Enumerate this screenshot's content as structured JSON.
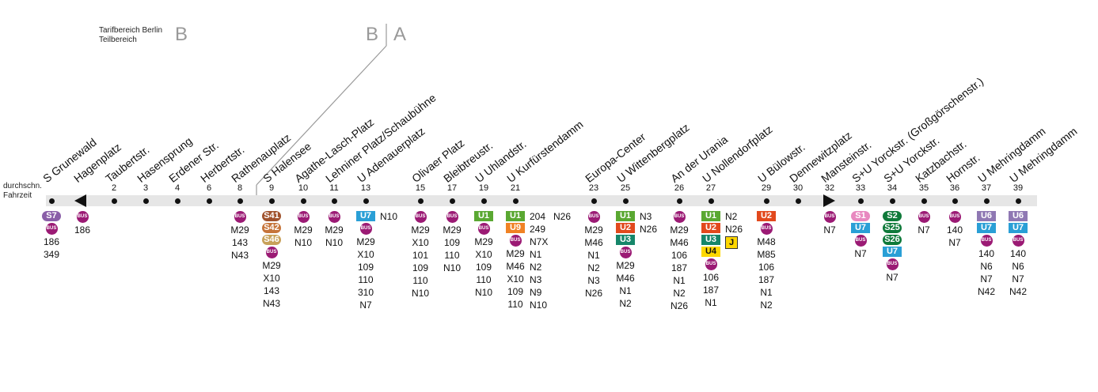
{
  "header": {
    "tariff_line1": "Tarifbereich Berlin",
    "tariff_line2": "Teilbereich",
    "zone_b_left": "B",
    "zone_b_right": "B",
    "zone_a": "A"
  },
  "legend": {
    "line1": "durchschn.",
    "line2": "Fahrzeit"
  },
  "colors": {
    "bus": "#9b1a74",
    "S7": "#8a5fa8",
    "S41": "#a0522d",
    "S42": "#c6743a",
    "S46": "#c8a15a",
    "U7": "#2a9fd6",
    "U1": "#5aa832",
    "U9": "#f08224",
    "U2": "#e2491d",
    "U3": "#16866a",
    "U4": "#ffd800",
    "S1": "#e889c0",
    "S2": "#0f7a3a",
    "S25": "#0f7a3a",
    "S26": "#0f7a3a",
    "U6": "#8f78b3"
  },
  "stops": [
    {
      "name": "S Grunewald",
      "minutes": "",
      "lines": [
        {
          "t": "s",
          "v": "S7"
        },
        {
          "t": "bus"
        },
        {
          "t": "txt",
          "v": "186"
        },
        {
          "t": "txt",
          "v": "349"
        }
      ]
    },
    {
      "name": "Hagenplatz",
      "minutes": "",
      "lines": [
        {
          "t": "bus"
        },
        {
          "t": "txt",
          "v": "186"
        }
      ]
    },
    {
      "name": "Taubertstr.",
      "minutes": "2",
      "lines": []
    },
    {
      "name": "Hasensprung",
      "minutes": "3",
      "lines": []
    },
    {
      "name": "Erdener Str.",
      "minutes": "4",
      "lines": []
    },
    {
      "name": "Herbertstr.",
      "minutes": "6",
      "lines": []
    },
    {
      "name": "Rathenauplatz",
      "minutes": "8",
      "lines": [
        {
          "t": "bus"
        },
        {
          "t": "txt",
          "v": "M29"
        },
        {
          "t": "txt",
          "v": "143"
        },
        {
          "t": "txt",
          "v": "N43"
        }
      ]
    },
    {
      "name": "S Halensee",
      "minutes": "9",
      "lines": [
        {
          "t": "s",
          "v": "S41"
        },
        {
          "t": "s",
          "v": "S42"
        },
        {
          "t": "s",
          "v": "S46"
        },
        {
          "t": "bus"
        },
        {
          "t": "txt",
          "v": "M29"
        },
        {
          "t": "txt",
          "v": "X10"
        },
        {
          "t": "txt",
          "v": "143"
        },
        {
          "t": "txt",
          "v": "N43"
        }
      ]
    },
    {
      "name": "Agathe-Lasch-Platz",
      "minutes": "10",
      "lines": [
        {
          "t": "bus"
        },
        {
          "t": "txt",
          "v": "M29"
        },
        {
          "t": "txt",
          "v": "N10"
        }
      ]
    },
    {
      "name": "Lehniner Platz/Schaubühne",
      "minutes": "11",
      "lines": [
        {
          "t": "bus"
        },
        {
          "t": "txt",
          "v": "M29"
        },
        {
          "t": "txt",
          "v": "N10"
        }
      ]
    },
    {
      "name": "U Adenauerplatz",
      "minutes": "13",
      "lines": [
        {
          "t": "u",
          "v": "U7"
        },
        {
          "t": "bus"
        },
        {
          "t": "txt",
          "v": "M29"
        },
        {
          "t": "txt",
          "v": "X10"
        },
        {
          "t": "txt",
          "v": "109"
        },
        {
          "t": "txt",
          "v": "110"
        },
        {
          "t": "txt",
          "v": "310"
        },
        {
          "t": "txt",
          "v": "N7"
        }
      ],
      "side": [
        "N10"
      ]
    },
    {
      "name": "Olivaer Platz",
      "minutes": "15",
      "lines": [
        {
          "t": "bus"
        },
        {
          "t": "txt",
          "v": "M29"
        },
        {
          "t": "txt",
          "v": "X10"
        },
        {
          "t": "txt",
          "v": "101"
        },
        {
          "t": "txt",
          "v": "109"
        },
        {
          "t": "txt",
          "v": "110"
        },
        {
          "t": "txt",
          "v": "N10"
        }
      ]
    },
    {
      "name": "Bleibtreustr.",
      "minutes": "17",
      "lines": [
        {
          "t": "bus"
        },
        {
          "t": "txt",
          "v": "M29"
        },
        {
          "t": "txt",
          "v": "109"
        },
        {
          "t": "txt",
          "v": "110"
        },
        {
          "t": "txt",
          "v": "N10"
        }
      ]
    },
    {
      "name": "U Uhlandstr.",
      "minutes": "19",
      "lines": [
        {
          "t": "u",
          "v": "U1"
        },
        {
          "t": "bus"
        },
        {
          "t": "txt",
          "v": "M29"
        },
        {
          "t": "txt",
          "v": "X10"
        },
        {
          "t": "txt",
          "v": "109"
        },
        {
          "t": "txt",
          "v": "110"
        },
        {
          "t": "txt",
          "v": "N10"
        }
      ]
    },
    {
      "name": "U Kurfürstendamm",
      "minutes": "21",
      "lines": [
        {
          "t": "u",
          "v": "U1"
        },
        {
          "t": "u",
          "v": "U9"
        },
        {
          "t": "bus"
        },
        {
          "t": "txt",
          "v": "M29"
        },
        {
          "t": "txt",
          "v": "M46"
        },
        {
          "t": "txt",
          "v": "X10"
        },
        {
          "t": "txt",
          "v": "109"
        },
        {
          "t": "txt",
          "v": "110"
        }
      ],
      "side": [
        "204",
        "249",
        "N7X",
        "N1",
        "N2",
        "N3",
        "N9",
        "N10"
      ],
      "side2": [
        "N26"
      ]
    },
    {
      "name": "Europa-Center",
      "minutes": "23",
      "lines": [
        {
          "t": "bus"
        },
        {
          "t": "txt",
          "v": "M29"
        },
        {
          "t": "txt",
          "v": "M46"
        },
        {
          "t": "txt",
          "v": "N1"
        },
        {
          "t": "txt",
          "v": "N2"
        },
        {
          "t": "txt",
          "v": "N3"
        },
        {
          "t": "txt",
          "v": "N26"
        }
      ]
    },
    {
      "name": "U Wittenbergplatz",
      "minutes": "25",
      "lines": [
        {
          "t": "u",
          "v": "U1"
        },
        {
          "t": "u",
          "v": "U2"
        },
        {
          "t": "u",
          "v": "U3"
        },
        {
          "t": "bus"
        },
        {
          "t": "txt",
          "v": "M29"
        },
        {
          "t": "txt",
          "v": "M46"
        },
        {
          "t": "txt",
          "v": "N1"
        },
        {
          "t": "txt",
          "v": "N2"
        }
      ],
      "side": [
        "N3",
        "N26"
      ]
    },
    {
      "name": "An der Urania",
      "minutes": "26",
      "lines": [
        {
          "t": "bus"
        },
        {
          "t": "txt",
          "v": "M29"
        },
        {
          "t": "txt",
          "v": "M46"
        },
        {
          "t": "txt",
          "v": "106"
        },
        {
          "t": "txt",
          "v": "187"
        },
        {
          "t": "txt",
          "v": "N1"
        },
        {
          "t": "txt",
          "v": "N2"
        },
        {
          "t": "txt",
          "v": "N26"
        }
      ]
    },
    {
      "name": "U Nollendorfplatz",
      "minutes": "27",
      "lines": [
        {
          "t": "u",
          "v": "U1"
        },
        {
          "t": "u",
          "v": "U2"
        },
        {
          "t": "u",
          "v": "U3"
        },
        {
          "t": "u",
          "v": "U4"
        },
        {
          "t": "bus"
        },
        {
          "t": "txt",
          "v": "106"
        },
        {
          "t": "txt",
          "v": "187"
        },
        {
          "t": "txt",
          "v": "N1"
        }
      ],
      "side": [
        "N2",
        "N26"
      ],
      "jlabel": "J"
    },
    {
      "name": "U Bülowstr.",
      "minutes": "29",
      "lines": [
        {
          "t": "u",
          "v": "U2"
        },
        {
          "t": "bus"
        },
        {
          "t": "txt",
          "v": "M48"
        },
        {
          "t": "txt",
          "v": "M85"
        },
        {
          "t": "txt",
          "v": "106"
        },
        {
          "t": "txt",
          "v": "187"
        },
        {
          "t": "txt",
          "v": "N1"
        },
        {
          "t": "txt",
          "v": "N2"
        }
      ]
    },
    {
      "name": "Dennewitzplatz",
      "minutes": "30",
      "lines": []
    },
    {
      "name": "Mansteinstr.",
      "minutes": "32",
      "lines": [
        {
          "t": "bus"
        },
        {
          "t": "txt",
          "v": "N7"
        }
      ]
    },
    {
      "name": "S+U Yorckstr. (Großgörschenstr.)",
      "minutes": "33",
      "lines": [
        {
          "t": "s",
          "v": "S1"
        },
        {
          "t": "u",
          "v": "U7"
        },
        {
          "t": "bus"
        },
        {
          "t": "txt",
          "v": "N7"
        }
      ]
    },
    {
      "name": "S+U Yorckstr.",
      "minutes": "34",
      "lines": [
        {
          "t": "s",
          "v": "S2"
        },
        {
          "t": "s",
          "v": "S25"
        },
        {
          "t": "s",
          "v": "S26"
        },
        {
          "t": "u",
          "v": "U7"
        },
        {
          "t": "bus"
        },
        {
          "t": "txt",
          "v": "N7"
        }
      ]
    },
    {
      "name": "Katzbachstr.",
      "minutes": "35",
      "lines": [
        {
          "t": "bus"
        },
        {
          "t": "txt",
          "v": "N7"
        }
      ]
    },
    {
      "name": "Hornstr.",
      "minutes": "36",
      "lines": [
        {
          "t": "bus"
        },
        {
          "t": "txt",
          "v": "140"
        },
        {
          "t": "txt",
          "v": "N7"
        }
      ]
    },
    {
      "name": "U Mehringdamm",
      "minutes": "37",
      "lines": [
        {
          "t": "u",
          "v": "U6"
        },
        {
          "t": "u",
          "v": "U7"
        },
        {
          "t": "bus"
        },
        {
          "t": "txt",
          "v": "140"
        },
        {
          "t": "txt",
          "v": "N6"
        },
        {
          "t": "txt",
          "v": "N7"
        },
        {
          "t": "txt",
          "v": "N42"
        }
      ]
    },
    {
      "name": "U Mehringdamm",
      "minutes": "39",
      "lines": [
        {
          "t": "u",
          "v": "U6"
        },
        {
          "t": "u",
          "v": "U7"
        },
        {
          "t": "bus"
        },
        {
          "t": "txt",
          "v": "140"
        },
        {
          "t": "txt",
          "v": "N6"
        },
        {
          "t": "txt",
          "v": "N7"
        },
        {
          "t": "txt",
          "v": "N42"
        }
      ]
    }
  ],
  "bus_label": "BUS"
}
